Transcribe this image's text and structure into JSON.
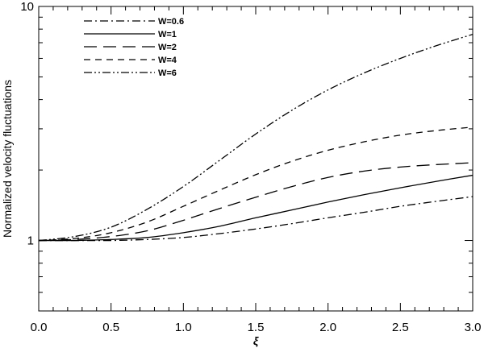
{
  "chart_data": {
    "type": "line",
    "title": "",
    "xlabel": "ξ",
    "ylabel": "Normalized velocity fluctuations",
    "xscale": "linear",
    "yscale": "log",
    "xlim": [
      0,
      3
    ],
    "ylim": [
      0.5,
      10
    ],
    "x_ticks": [
      "0.0",
      "0.5",
      "1.0",
      "1.5",
      "2.0",
      "2.5",
      "3.0"
    ],
    "y_ticks": [
      "1",
      "10"
    ],
    "grid": false,
    "legend_position": "top-left",
    "x": [
      0,
      0.25,
      0.5,
      0.75,
      1.0,
      1.25,
      1.5,
      1.75,
      2.0,
      2.25,
      2.5,
      2.75,
      3.0
    ],
    "series": [
      {
        "name": "W=0.6",
        "dash": "dash-dot",
        "values": [
          1.0,
          1.0,
          1.0,
          1.01,
          1.03,
          1.07,
          1.12,
          1.18,
          1.25,
          1.32,
          1.4,
          1.47,
          1.54
        ]
      },
      {
        "name": "W=1",
        "dash": "solid",
        "values": [
          1.0,
          1.0,
          1.01,
          1.03,
          1.08,
          1.15,
          1.25,
          1.35,
          1.46,
          1.57,
          1.68,
          1.79,
          1.9
        ]
      },
      {
        "name": "W=2",
        "dash": "long-dash",
        "values": [
          1.0,
          1.01,
          1.04,
          1.1,
          1.22,
          1.37,
          1.53,
          1.7,
          1.86,
          1.98,
          2.06,
          2.11,
          2.15
        ]
      },
      {
        "name": "W=4",
        "dash": "short-dash",
        "values": [
          1.0,
          1.02,
          1.08,
          1.2,
          1.4,
          1.64,
          1.91,
          2.18,
          2.43,
          2.64,
          2.82,
          2.95,
          3.05
        ]
      },
      {
        "name": "W=6",
        "dash": "dash-dot-dot",
        "values": [
          1.0,
          1.04,
          1.14,
          1.36,
          1.7,
          2.2,
          2.85,
          3.6,
          4.4,
          5.2,
          6.0,
          6.8,
          7.6
        ]
      }
    ]
  }
}
